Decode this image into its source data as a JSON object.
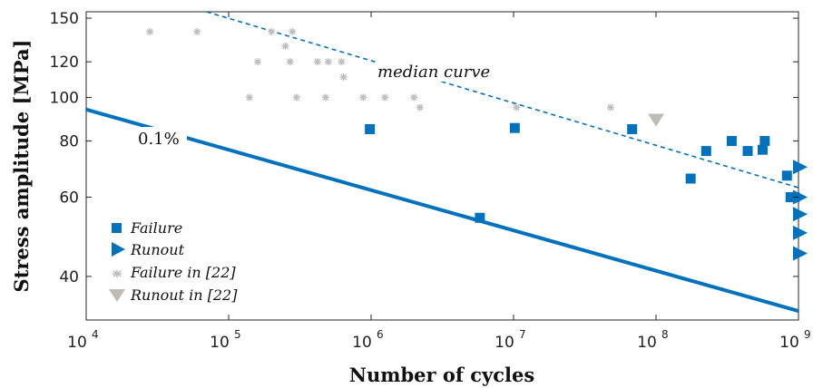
{
  "chart_data": {
    "type": "scatter",
    "xlabel": "Number of cycles",
    "ylabel": "Stress amplitude [MPa]",
    "xscale": "log",
    "yscale": "log",
    "xlim": [
      10000,
      1000000000
    ],
    "ylim": [
      32,
      155
    ],
    "x_ticks": [
      10000,
      100000,
      1000000,
      10000000,
      100000000,
      1000000000
    ],
    "x_tick_labels": [
      {
        "base": "10",
        "exp": "4"
      },
      {
        "base": "10",
        "exp": "5"
      },
      {
        "base": "10",
        "exp": "6"
      },
      {
        "base": "10",
        "exp": "7"
      },
      {
        "base": "10",
        "exp": "8"
      },
      {
        "base": "10",
        "exp": "9"
      }
    ],
    "y_ticks": [
      40,
      60,
      80,
      100,
      120,
      150
    ],
    "y_tick_labels": [
      "40",
      "60",
      "80",
      "100",
      "120",
      "150"
    ],
    "grid": false,
    "legend_position": "bottom-left",
    "series": [
      {
        "name": "Failure",
        "marker": "square",
        "color": "#0072BD",
        "points": [
          [
            980000,
            85
          ],
          [
            5800000,
            54
          ],
          [
            10200000,
            85.5
          ],
          [
            68000000,
            85
          ],
          [
            175000000,
            66
          ],
          [
            225000000,
            76
          ],
          [
            340000000,
            80
          ],
          [
            440000000,
            76
          ],
          [
            560000000,
            76.5
          ],
          [
            580000000,
            80
          ],
          [
            830000000,
            67
          ],
          [
            880000000,
            60
          ],
          [
            940000000,
            60
          ]
        ]
      },
      {
        "name": "Runout",
        "marker": "triangle-right",
        "color": "#0072BD",
        "points": [
          [
            1000000000,
            70
          ],
          [
            1000000000,
            60
          ],
          [
            1000000000,
            55
          ],
          [
            1000000000,
            50
          ],
          [
            1000000000,
            45
          ]
        ]
      },
      {
        "name": "Failure in [22]",
        "marker": "asterisk",
        "color": "#bdbdbd",
        "points": [
          [
            28000,
            140
          ],
          [
            60000,
            140
          ],
          [
            140000,
            100
          ],
          [
            160000,
            120
          ],
          [
            200000,
            140
          ],
          [
            250000,
            130
          ],
          [
            270000,
            120
          ],
          [
            280000,
            140
          ],
          [
            300000,
            100
          ],
          [
            420000,
            120
          ],
          [
            480000,
            100
          ],
          [
            500000,
            120
          ],
          [
            620000,
            120
          ],
          [
            640000,
            111
          ],
          [
            880000,
            100
          ],
          [
            1250000,
            100
          ],
          [
            2000000,
            100
          ],
          [
            2200000,
            95
          ],
          [
            10500000,
            95
          ],
          [
            48000000,
            95
          ]
        ]
      },
      {
        "name": "Runout in [22]",
        "marker": "triangle-down",
        "color": "#bfbab5",
        "points": [
          [
            100000000,
            89
          ]
        ]
      }
    ],
    "lines": [
      {
        "label": "median curve",
        "style": "dashed",
        "color": "#0072BD",
        "x": [
          70000,
          1000000000
        ],
        "y": [
          155,
          63
        ]
      },
      {
        "label": "0.1%",
        "style": "solid",
        "color": "#0072BD",
        "x": [
          10000,
          1000000000
        ],
        "y": [
          94,
          33.5
        ]
      }
    ]
  }
}
